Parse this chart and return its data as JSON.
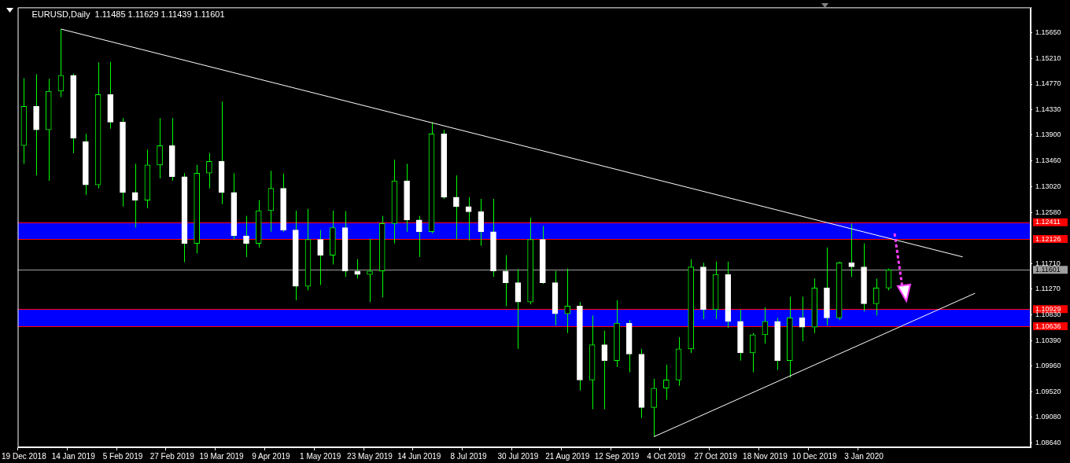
{
  "chart_data": {
    "type": "candlestick",
    "title": "EURUSD,Daily  1.11485 1.11629 1.11439 1.11601",
    "categories": [
      "19 Dec 2018",
      null,
      null,
      null,
      "14 Jan 2019",
      null,
      null,
      null,
      "5 Feb 2019",
      null,
      null,
      null,
      "27 Feb 2019",
      null,
      null,
      null,
      "19 Mar 2019",
      null,
      null,
      null,
      "9 Apr 2019",
      null,
      null,
      null,
      "1 May 2019",
      null,
      null,
      null,
      "23 May 2019",
      null,
      null,
      null,
      "14 Jun 2019",
      null,
      null,
      null,
      "8 Jul 2019",
      null,
      null,
      null,
      "30 Jul 2019",
      null,
      null,
      null,
      "21 Aug 2019",
      null,
      null,
      null,
      "12 Sep 2019",
      null,
      null,
      null,
      "4 Oct 2019",
      null,
      null,
      null,
      "27 Oct 2019",
      null,
      null,
      null,
      "18 Nov 2019",
      null,
      null,
      null,
      "10 Dec 2019",
      null,
      null,
      null,
      "3 Jan 2020",
      null,
      null,
      null,
      null,
      null,
      null,
      null,
      null,
      null,
      null,
      null,
      null,
      null
    ],
    "color": "#00ff00",
    "colors": [
      "#00ff00",
      "#ffffff",
      "#00ff00",
      "#00ff00",
      "#ffffff",
      "#ffffff",
      "#00ff00",
      "#ffffff",
      "#ffffff",
      "#ffffff",
      "#00ff00",
      "#00ff00",
      "#ffffff",
      "#ffffff",
      "#00ff00",
      "#00ff00",
      "#ffffff",
      "#ffffff",
      "#ffffff",
      "#00ff00",
      "#00ff00",
      "#ffffff",
      "#ffffff",
      "#00ff00",
      "#ffffff",
      "#00ff00",
      "#ffffff",
      "#ffffff",
      "#00ff00",
      "#00ff00",
      "#00ff00",
      "#ffffff",
      "#ffffff",
      "#00ff00",
      "#ffffff",
      "#ffffff",
      "#ffffff",
      "#ffffff",
      "#ffffff",
      "#ffffff",
      "#ffffff",
      "#00ff00",
      "#ffffff",
      "#ffffff",
      "#00ff00",
      "#ffffff",
      "#00ff00",
      "#ffffff",
      "#00ff00",
      "#ffffff",
      "#ffffff",
      "#00ff00",
      "#00ff00",
      "#00ff00",
      "#00ff00",
      "#ffffff",
      "#00ff00",
      "#ffffff",
      "#ffffff",
      "#00ff00",
      "#00ff00",
      "#ffffff",
      "#00ff00",
      "#ffffff",
      "#00ff00",
      "#ffffff",
      "#00ff00",
      "#ffffff",
      "#ffffff",
      "#00ff00",
      "#00ff00",
      null,
      null,
      null,
      null,
      null,
      null,
      null,
      null,
      null,
      null,
      null
    ],
    "ohlc": [
      [
        1.1372,
        1.1487,
        1.1341,
        1.1439
      ],
      [
        1.1439,
        1.1494,
        1.1321,
        1.1399
      ],
      [
        1.1399,
        1.1486,
        1.1312,
        1.1465
      ],
      [
        1.1465,
        1.1571,
        1.1455,
        1.1492
      ],
      [
        1.1492,
        1.1495,
        1.1359,
        1.1385
      ],
      [
        1.1379,
        1.1392,
        1.1288,
        1.1305
      ],
      [
        1.1305,
        1.1514,
        1.1299,
        1.1459
      ],
      [
        1.1459,
        1.1515,
        1.1401,
        1.1412
      ],
      [
        1.1412,
        1.1419,
        1.1268,
        1.1292
      ],
      [
        1.1292,
        1.1341,
        1.1232,
        1.1279
      ],
      [
        1.1279,
        1.1365,
        1.1265,
        1.1339
      ],
      [
        1.1339,
        1.1419,
        1.1316,
        1.1372
      ],
      [
        1.1372,
        1.1419,
        1.1312,
        1.1319
      ],
      [
        1.1319,
        1.1325,
        1.1173,
        1.1205
      ],
      [
        1.1205,
        1.1339,
        1.1188,
        1.1325
      ],
      [
        1.1325,
        1.1359,
        1.1299,
        1.1345
      ],
      [
        1.1345,
        1.1447,
        1.1272,
        1.1292
      ],
      [
        1.1292,
        1.1325,
        1.1212,
        1.1218
      ],
      [
        1.1218,
        1.1252,
        1.1182,
        1.1205
      ],
      [
        1.1205,
        1.1279,
        1.1198,
        1.1261
      ],
      [
        1.1261,
        1.1329,
        1.1225,
        1.1299
      ],
      [
        1.1299,
        1.1324,
        1.1225,
        1.1228
      ],
      [
        1.1228,
        1.1261,
        1.1108,
        1.1132
      ],
      [
        1.1132,
        1.1264,
        1.1125,
        1.1212
      ],
      [
        1.1212,
        1.1228,
        1.1134,
        1.1185
      ],
      [
        1.1185,
        1.1261,
        1.1169,
        1.1232
      ],
      [
        1.1232,
        1.126,
        1.1148,
        1.1158
      ],
      [
        1.1158,
        1.1178,
        1.1145,
        1.1152
      ],
      [
        1.1152,
        1.1213,
        1.1105,
        1.1158
      ],
      [
        1.1158,
        1.1252,
        1.1113,
        1.1239
      ],
      [
        1.1239,
        1.1348,
        1.1205,
        1.1312
      ],
      [
        1.1312,
        1.1341,
        1.1225,
        1.1245
      ],
      [
        1.1245,
        1.1252,
        1.1182,
        1.1225
      ],
      [
        1.1225,
        1.1412,
        1.1222,
        1.1392
      ],
      [
        1.1392,
        1.1399,
        1.1281,
        1.1284
      ],
      [
        1.1284,
        1.1321,
        1.1212,
        1.1268
      ],
      [
        1.1268,
        1.1284,
        1.121,
        1.1259
      ],
      [
        1.1259,
        1.1281,
        1.1201,
        1.1225
      ],
      [
        1.1225,
        1.1281,
        1.1148,
        1.1158
      ],
      [
        1.1158,
        1.1185,
        1.1098,
        1.1138
      ],
      [
        1.1138,
        1.1161,
        1.1025,
        1.1105
      ],
      [
        1.1105,
        1.1249,
        1.1101,
        1.1212
      ],
      [
        1.1212,
        1.1235,
        1.1136,
        1.1138
      ],
      [
        1.1138,
        1.1158,
        1.1065,
        1.1085
      ],
      [
        1.1085,
        1.1162,
        1.1052,
        1.1098
      ],
      [
        1.1098,
        1.1105,
        1.0954,
        1.0972
      ],
      [
        1.0972,
        1.1082,
        1.0922,
        1.1032
      ],
      [
        1.1032,
        1.1056,
        1.0922,
        1.1005
      ],
      [
        1.1005,
        1.1108,
        1.0994,
        1.1069
      ],
      [
        1.1069,
        1.1074,
        1.0985,
        1.1016
      ],
      [
        1.1016,
        1.1025,
        1.0907,
        1.0925
      ],
      [
        1.0925,
        1.0974,
        1.0875,
        1.0958
      ],
      [
        1.0958,
        1.0998,
        1.0938,
        1.0972
      ],
      [
        1.0972,
        1.1045,
        1.0962,
        1.1025
      ],
      [
        1.1025,
        1.1178,
        1.1018,
        1.1165
      ],
      [
        1.1165,
        1.1172,
        1.1076,
        1.1092
      ],
      [
        1.1092,
        1.1174,
        1.1076,
        1.1152
      ],
      [
        1.1152,
        1.1174,
        1.1061,
        1.1072
      ],
      [
        1.1072,
        1.1092,
        1.1005,
        1.1018
      ],
      [
        1.1018,
        1.1052,
        1.0985,
        1.1049
      ],
      [
        1.1049,
        1.1096,
        1.1034,
        1.1072
      ],
      [
        1.1072,
        1.1078,
        1.0989,
        1.1005
      ],
      [
        1.1005,
        1.1114,
        1.0976,
        1.1078
      ],
      [
        1.1078,
        1.1114,
        1.1038,
        1.1062
      ],
      [
        1.1062,
        1.1145,
        1.1052,
        1.1129
      ],
      [
        1.1129,
        1.1198,
        1.1065,
        1.1078
      ],
      [
        1.1078,
        1.1174,
        1.1074,
        1.1172
      ],
      [
        1.1172,
        1.1239,
        1.1148,
        1.1165
      ],
      [
        1.1165,
        1.1205,
        1.1089,
        1.1102
      ],
      [
        1.1102,
        1.1145,
        1.1082,
        1.1129
      ],
      [
        1.1129,
        1.1162,
        1.1125,
        1.116
      ],
      null,
      null,
      null,
      null,
      null,
      null,
      null,
      null,
      null,
      null,
      null
    ],
    "series": [
      {
        "type": "line",
        "color": "#ffffff",
        "values": [
          null,
          null,
          null,
          1.1571,
          null,
          null,
          null,
          null,
          null,
          null,
          null,
          null,
          null,
          null,
          null,
          null,
          null,
          null,
          null,
          null,
          null,
          null,
          null,
          null,
          null,
          null,
          null,
          null,
          null,
          null,
          null,
          null,
          null,
          null,
          null,
          null,
          null,
          null,
          null,
          null,
          null,
          null,
          null,
          null,
          null,
          null,
          null,
          null,
          null,
          null,
          null,
          null,
          null,
          null,
          null,
          null,
          null,
          null,
          null,
          null,
          null,
          null,
          null,
          null,
          null,
          null,
          null,
          null,
          null,
          null,
          null,
          null,
          null,
          null,
          null,
          null,
          1.1182,
          null,
          null,
          null,
          null,
          null
        ]
      },
      {
        "type": "line",
        "color": "#ffffff",
        "values": [
          null,
          null,
          null,
          null,
          null,
          null,
          null,
          null,
          null,
          null,
          null,
          null,
          null,
          null,
          null,
          null,
          null,
          null,
          null,
          null,
          null,
          null,
          null,
          null,
          null,
          null,
          null,
          null,
          null,
          null,
          null,
          null,
          null,
          null,
          null,
          null,
          null,
          null,
          null,
          null,
          null,
          null,
          null,
          null,
          null,
          null,
          null,
          null,
          null,
          null,
          null,
          1.0875,
          null,
          null,
          null,
          null,
          null,
          null,
          null,
          null,
          null,
          null,
          null,
          null,
          null,
          null,
          null,
          null,
          null,
          null,
          null,
          null,
          null,
          null,
          null,
          null,
          null,
          1.112,
          null,
          null,
          null,
          null
        ]
      }
    ],
    "ylim": [
      1.0857,
      1.1608
    ],
    "yticks": [
      {
        "value": 1.1565,
        "label": "1.15650"
      },
      {
        "value": 1.1521,
        "label": "1.15210"
      },
      {
        "value": 1.1477,
        "label": "1.14770"
      },
      {
        "value": 1.1433,
        "label": "1.14330"
      },
      {
        "value": 1.139,
        "label": "1.13900"
      },
      {
        "value": 1.1346,
        "label": "1.13460"
      },
      {
        "value": 1.1302,
        "label": "1.13020"
      },
      {
        "value": 1.1258,
        "label": "1.12580"
      },
      {
        "value": 1.1171,
        "label": "1.11710"
      },
      {
        "value": 1.1127,
        "label": "1.11270"
      },
      {
        "value": 1.1083,
        "label": "1.10830"
      },
      {
        "value": 1.1039,
        "label": "1.10390"
      },
      {
        "value": 1.0996,
        "label": "1.09960"
      },
      {
        "value": 1.0952,
        "label": "1.09520"
      },
      {
        "value": 1.0908,
        "label": "1.09080"
      },
      {
        "value": 1.0864,
        "label": "1.08640"
      }
    ],
    "bands": [
      {
        "axis": "y",
        "from": 1.12126,
        "to": 1.12411,
        "color": "#0000ff"
      },
      {
        "axis": "y",
        "from": 1.10636,
        "to": 1.10929,
        "color": "#0000ff"
      }
    ],
    "ref_lines": [
      {
        "axis": "y",
        "value": 1.12411,
        "label": "1.12411",
        "color": "#ff0000"
      },
      {
        "axis": "y",
        "value": 1.12126,
        "label": "1.12126",
        "color": "#ff0000"
      },
      {
        "axis": "y",
        "value": 1.11601,
        "label": "1.11601",
        "color": "#a0a0a0"
      },
      {
        "axis": "y",
        "value": 1.10929,
        "label": "1.10929",
        "color": "#ff0000"
      },
      {
        "axis": "y",
        "value": 1.10636,
        "label": "1.10636",
        "color": "#ff0000"
      }
    ],
    "grid": false,
    "legend": false
  }
}
